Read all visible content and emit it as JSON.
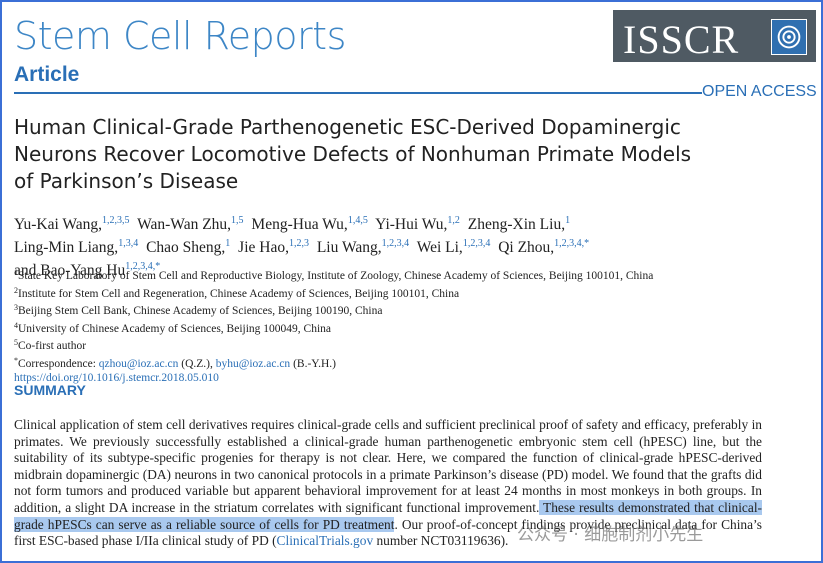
{
  "header": {
    "journal": "Stem Cell Reports",
    "section": "Article",
    "logo": "ISSCR",
    "open_access": "OPEN ACCESS"
  },
  "article": {
    "title": "Human Clinical-Grade Parthenogenetic ESC-Derived Dopaminergic Neurons Recover Locomotive Defects of Nonhuman Primate Models of Parkinson’s Disease",
    "authors": [
      {
        "name": "Yu-Kai Wang,",
        "sup": "1,2,3,5"
      },
      {
        "name": "Wan-Wan Zhu,",
        "sup": "1,5"
      },
      {
        "name": "Meng-Hua Wu,",
        "sup": "1,4,5"
      },
      {
        "name": "Yi-Hui Wu,",
        "sup": "1,2"
      },
      {
        "name": "Zheng-Xin Liu,",
        "sup": "1"
      },
      {
        "name": "Ling-Min Liang,",
        "sup": "1,3,4"
      },
      {
        "name": "Chao Sheng,",
        "sup": "1"
      },
      {
        "name": "Jie Hao,",
        "sup": "1,2,3"
      },
      {
        "name": "Liu Wang,",
        "sup": "1,2,3,4"
      },
      {
        "name": "Wei Li,",
        "sup": "1,2,3,4"
      },
      {
        "name": "Qi Zhou,",
        "sup": "1,2,3,4,*"
      },
      {
        "name": "and Bao-Yang Hu",
        "sup": "1,2,3,4,*"
      }
    ],
    "affiliations": [
      {
        "num": "1",
        "text": "State Key Laboratory of Stem Cell and Reproductive Biology, Institute of Zoology, Chinese Academy of Sciences, Beijing 100101, China"
      },
      {
        "num": "2",
        "text": "Institute for Stem Cell and Regeneration, Chinese Academy of Sciences, Beijing 100101, China"
      },
      {
        "num": "3",
        "text": "Beijing Stem Cell Bank, Chinese Academy of Sciences, Beijing 100190, China"
      },
      {
        "num": "4",
        "text": "University of Chinese Academy of Sciences, Beijing 100049, China"
      },
      {
        "num": "5",
        "text": "Co-first author"
      }
    ],
    "correspondence": {
      "marker": "*",
      "label": "Correspondence:",
      "email1": "qzhou@ioz.ac.cn",
      "name1": "(Q.Z.),",
      "email2": "byhu@ioz.ac.cn",
      "name2": "(B.-Y.H.)"
    },
    "doi": "https://doi.org/10.1016/j.stemcr.2018.05.010",
    "summary_heading": "SUMMARY",
    "summary": {
      "part1": "Clinical application of stem cell derivatives requires clinical-grade cells and sufficient preclinical proof of safety and efficacy, preferably in primates. We previously successfully established a clinical-grade human parthenogenetic embryonic stem cell (hPESC) line, but the suitability of its subtype-specific progenies for therapy is not clear. Here, we compared the function of clinical-grade hPESC-derived midbrain dopaminergic (DA) neurons in two canonical protocols in a primate Parkinson’s disease (PD) model. We found that the grafts did not form tumors and produced variable but apparent behavioral improvement for at least 24 months in most monkeys in both groups. In addition, a slight DA increase in the striatum correlates with significant functional improvement.",
      "highlight": " These results demonstrated that clinical-grade hPESCs can serve as a reliable source of cells for PD treatment",
      "part2": ". Our proof-of-concept findings provide preclinical data for China’s first ESC-based phase I/IIa clinical study of PD (",
      "link": "ClinicalTrials.gov",
      "part3": " number NCT03119636)."
    }
  },
  "watermark": "公众号 · 细胞制剂小先生"
}
